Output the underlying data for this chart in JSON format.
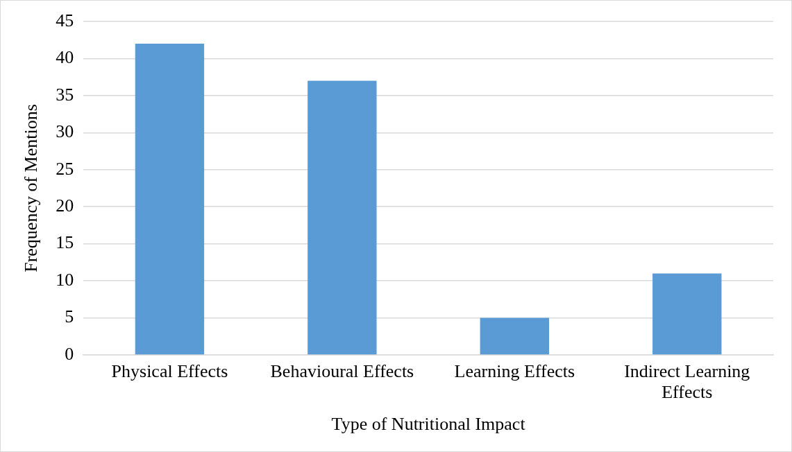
{
  "chart_data": {
    "type": "bar",
    "xlabel": "Type of Nutritional Impact",
    "ylabel": "Frequency of Mentions",
    "categories": [
      "Physical Effects",
      "Behavioural Effects",
      "Learning Effects",
      "Indirect Learning Effects"
    ],
    "values": [
      42,
      37,
      5,
      11
    ],
    "color": "#5b9bd5",
    "ylim": [
      0,
      45
    ],
    "yticks": [
      0,
      5,
      10,
      15,
      20,
      25,
      30,
      35,
      40,
      45
    ],
    "grid": "y"
  }
}
